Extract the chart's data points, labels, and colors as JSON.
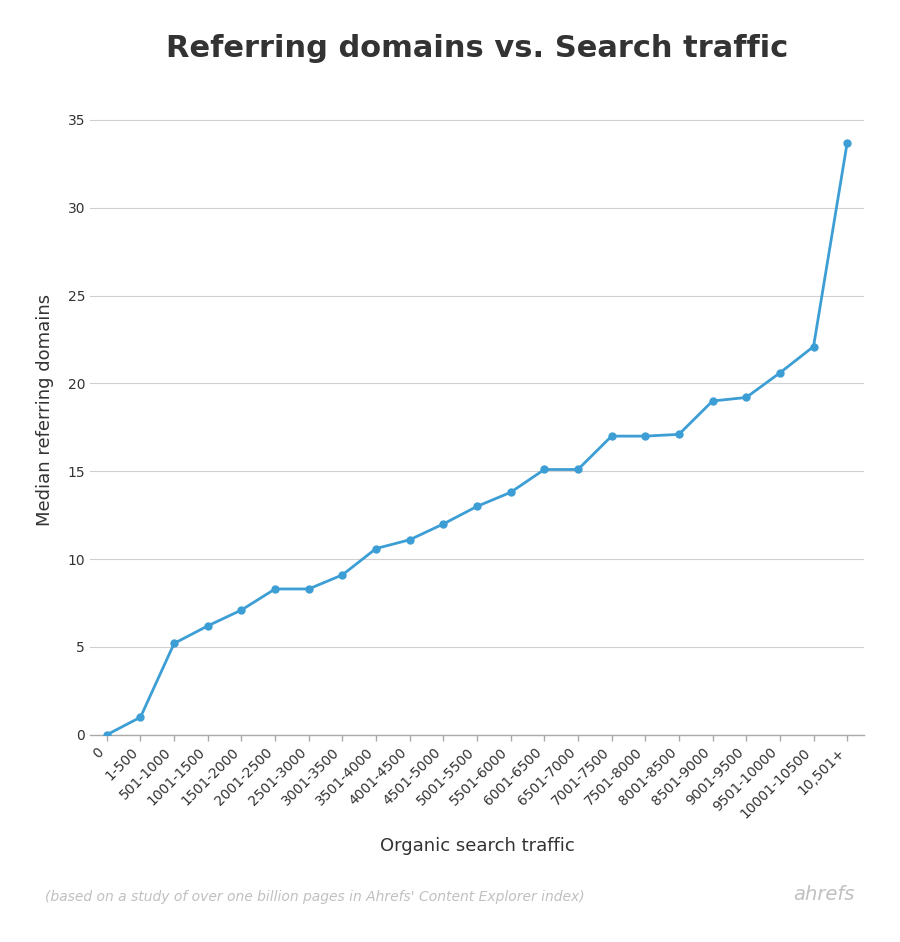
{
  "title": "Referring domains vs. Search traffic",
  "xlabel": "Organic search traffic",
  "ylabel": "Median referring domains",
  "footnote": "(based on a study of over one billion pages in Ahrefs' Content Explorer index)",
  "brand": "ahrefs",
  "categories": [
    "0",
    "1-500",
    "501-1000",
    "1001-1500",
    "1501-2000",
    "2001-2500",
    "2501-3000",
    "3001-3500",
    "3501-4000",
    "4001-4500",
    "4501-5000",
    "5001-5500",
    "5501-6000",
    "6001-6500",
    "6501-7000",
    "7001-7500",
    "7501-8000",
    "8001-8500",
    "8501-9000",
    "9001-9500",
    "9501-10000",
    "10001-10500",
    "10,501+"
  ],
  "values": [
    0.0,
    1.0,
    5.2,
    6.2,
    7.1,
    8.3,
    8.3,
    9.1,
    10.6,
    11.1,
    12.0,
    13.0,
    13.8,
    15.1,
    15.1,
    17.0,
    17.0,
    17.1,
    19.0,
    19.2,
    20.6,
    22.1,
    33.7
  ],
  "line_color": "#3c9ed4",
  "marker_color": "#3c9ed4",
  "background_color": "#ffffff",
  "grid_color": "#d0d0d0",
  "title_fontsize": 22,
  "label_fontsize": 13,
  "tick_fontsize": 10,
  "footnote_fontsize": 10,
  "brand_fontsize": 14,
  "ylim": [
    0,
    37
  ],
  "yticks": [
    0,
    5,
    10,
    15,
    20,
    25,
    30,
    35
  ],
  "text_color": "#333333",
  "light_text_color": "#c0c0c0",
  "spine_color": "#aaaaaa"
}
